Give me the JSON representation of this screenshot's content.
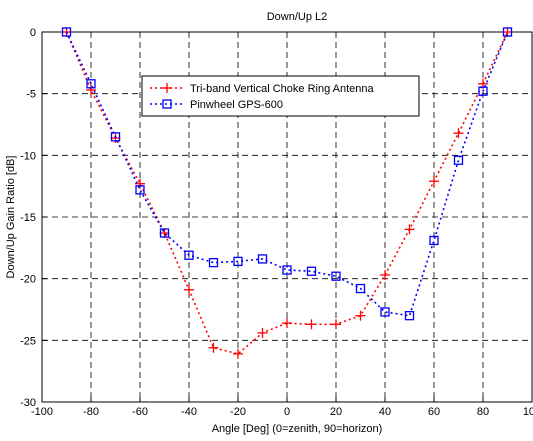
{
  "chart_data": {
    "type": "line",
    "title": "Down/Up L2",
    "xlabel": "Angle [Deg] (0=zenith, 90=horizon)",
    "ylabel": "Down/Up Gain Ratio [dB]",
    "xlim": [
      -100,
      100
    ],
    "ylim": [
      -30,
      0
    ],
    "xticks": [
      -100,
      -80,
      -60,
      -40,
      -20,
      0,
      20,
      40,
      60,
      80,
      100
    ],
    "yticks": [
      0,
      -5,
      -10,
      -15,
      -20,
      -25,
      -30
    ],
    "grid": true,
    "legend_position": "top-right",
    "series": [
      {
        "name": "Tri-band Vertical Choke Ring Antenna",
        "color": "#ff0000",
        "marker": "plus",
        "x": [
          -90,
          -80,
          -70,
          -60,
          -50,
          -40,
          -30,
          -20,
          -10,
          0,
          10,
          20,
          30,
          40,
          50,
          60,
          70,
          80,
          90
        ],
        "y": [
          0,
          -4.7,
          -8.6,
          -12.3,
          -16.3,
          -20.9,
          -25.6,
          -26.1,
          -24.4,
          -23.6,
          -23.7,
          -23.7,
          -23.0,
          -19.7,
          -16.0,
          -12.1,
          -8.2,
          -4.2,
          0
        ]
      },
      {
        "name": "Pinwheel GPS-600",
        "color": "#0000ff",
        "marker": "square",
        "x": [
          -90,
          -80,
          -70,
          -60,
          -50,
          -40,
          -30,
          -20,
          -10,
          0,
          10,
          20,
          30,
          40,
          50,
          60,
          70,
          80,
          90
        ],
        "y": [
          0,
          -4.2,
          -8.5,
          -12.8,
          -16.3,
          -18.1,
          -18.7,
          -18.6,
          -18.4,
          -19.3,
          -19.4,
          -19.8,
          -20.8,
          -22.7,
          -23.0,
          -16.9,
          -10.4,
          -4.8,
          0
        ]
      }
    ]
  }
}
